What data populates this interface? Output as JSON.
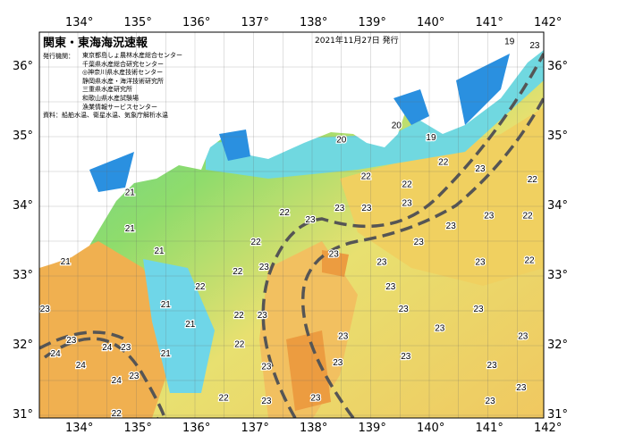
{
  "header": {
    "title": "関東・東海海況速報",
    "issued": "2021年11月27日 発行",
    "organizations_label": "発行機関：",
    "organizations": [
      "東京都島しょ農林水産総合センター",
      "千葉県水産総合研究センター",
      "◎神奈川県水産技術センター",
      "静岡県水産・海洋技術研究所",
      "三重県水産研究所",
      "和歌山県水産試験場",
      "漁業情報サービスセンター"
    ],
    "source": "資料：船舶水温、衛星水温、気象庁解析水温"
  },
  "axes": {
    "lon_ticks": [
      "134°",
      "135°",
      "136°",
      "137°",
      "138°",
      "139°",
      "140°",
      "141°",
      "142°"
    ],
    "lat_ticks": [
      "36°",
      "35°",
      "34°",
      "33°",
      "32°",
      "31°"
    ],
    "lon_range": [
      133.35,
      142.05
    ],
    "lat_range": [
      30.97,
      36.49
    ]
  },
  "colors": {
    "land": "#ffffff",
    "cold": "#1e90e8",
    "cool": "#6fd6f0",
    "mid": "#7ed67a",
    "warm": "#f2e070",
    "hot": "#f0a040",
    "current": "#555555"
  },
  "temperature_labels": [
    {
      "t": "23",
      "lon": 141.8,
      "lat": 36.32
    },
    {
      "t": "19",
      "lon": 141.37,
      "lat": 36.38
    },
    {
      "t": "20",
      "lon": 138.5,
      "lat": 34.97
    },
    {
      "t": "20",
      "lon": 139.44,
      "lat": 35.17
    },
    {
      "t": "19",
      "lon": 140.03,
      "lat": 35.0
    },
    {
      "t": "22",
      "lon": 140.24,
      "lat": 34.65
    },
    {
      "t": "22",
      "lon": 138.92,
      "lat": 34.44
    },
    {
      "t": "22",
      "lon": 139.62,
      "lat": 34.33
    },
    {
      "t": "23",
      "lon": 140.87,
      "lat": 34.55
    },
    {
      "t": "22",
      "lon": 141.76,
      "lat": 34.4
    },
    {
      "t": "21",
      "lon": 134.89,
      "lat": 34.21
    },
    {
      "t": "21",
      "lon": 134.89,
      "lat": 33.69
    },
    {
      "t": "22",
      "lon": 137.53,
      "lat": 33.92
    },
    {
      "t": "23",
      "lon": 137.97,
      "lat": 33.82
    },
    {
      "t": "23",
      "lon": 138.47,
      "lat": 33.99
    },
    {
      "t": "23",
      "lon": 138.93,
      "lat": 33.99
    },
    {
      "t": "23",
      "lon": 139.62,
      "lat": 34.06
    },
    {
      "t": "23",
      "lon": 140.37,
      "lat": 33.73
    },
    {
      "t": "23",
      "lon": 141.02,
      "lat": 33.88
    },
    {
      "t": "22",
      "lon": 141.68,
      "lat": 33.88
    },
    {
      "t": "22",
      "lon": 137.04,
      "lat": 33.5
    },
    {
      "t": "22",
      "lon": 136.73,
      "lat": 33.08
    },
    {
      "t": "23",
      "lon": 137.18,
      "lat": 33.14
    },
    {
      "t": "23",
      "lon": 138.37,
      "lat": 33.33
    },
    {
      "t": "23",
      "lon": 139.19,
      "lat": 33.21
    },
    {
      "t": "23",
      "lon": 139.82,
      "lat": 33.5
    },
    {
      "t": "23",
      "lon": 139.34,
      "lat": 32.86
    },
    {
      "t": "23",
      "lon": 140.87,
      "lat": 33.21
    },
    {
      "t": "22",
      "lon": 141.71,
      "lat": 33.24
    },
    {
      "t": "21",
      "lon": 135.39,
      "lat": 33.37
    },
    {
      "t": "21",
      "lon": 135.5,
      "lat": 32.6
    },
    {
      "t": "22",
      "lon": 136.09,
      "lat": 32.86
    },
    {
      "t": "22",
      "lon": 136.75,
      "lat": 32.45
    },
    {
      "t": "23",
      "lon": 137.15,
      "lat": 32.45
    },
    {
      "t": "23",
      "lon": 138.53,
      "lat": 32.15
    },
    {
      "t": "23",
      "lon": 139.56,
      "lat": 32.54
    },
    {
      "t": "23",
      "lon": 140.18,
      "lat": 32.26
    },
    {
      "t": "23",
      "lon": 140.84,
      "lat": 32.54
    },
    {
      "t": "23",
      "lon": 141.6,
      "lat": 32.15
    },
    {
      "t": "21",
      "lon": 135.92,
      "lat": 32.32
    },
    {
      "t": "21",
      "lon": 135.5,
      "lat": 31.9
    },
    {
      "t": "22",
      "lon": 136.76,
      "lat": 32.03
    },
    {
      "t": "23",
      "lon": 137.22,
      "lat": 31.71
    },
    {
      "t": "23",
      "lon": 138.44,
      "lat": 31.77
    },
    {
      "t": "23",
      "lon": 139.6,
      "lat": 31.86
    },
    {
      "t": "23",
      "lon": 141.07,
      "lat": 31.73
    },
    {
      "t": "23",
      "lon": 141.57,
      "lat": 31.41
    },
    {
      "t": "23",
      "lon": 141.04,
      "lat": 31.22
    },
    {
      "t": "23",
      "lon": 137.22,
      "lat": 31.22
    },
    {
      "t": "23",
      "lon": 138.06,
      "lat": 31.26
    },
    {
      "t": "22",
      "lon": 136.49,
      "lat": 31.26
    },
    {
      "t": "24",
      "lon": 133.62,
      "lat": 31.9
    },
    {
      "t": "24",
      "lon": 134.05,
      "lat": 31.73
    },
    {
      "t": "24",
      "lon": 134.5,
      "lat": 31.99
    },
    {
      "t": "24",
      "lon": 134.66,
      "lat": 31.51
    },
    {
      "t": "23",
      "lon": 133.44,
      "lat": 32.54
    },
    {
      "t": "23",
      "lon": 133.89,
      "lat": 32.09
    },
    {
      "t": "23",
      "lon": 134.96,
      "lat": 31.58
    },
    {
      "t": "23",
      "lon": 134.82,
      "lat": 31.99
    },
    {
      "t": "21",
      "lon": 133.79,
      "lat": 33.22
    },
    {
      "t": "22",
      "lon": 134.66,
      "lat": 31.04
    }
  ]
}
